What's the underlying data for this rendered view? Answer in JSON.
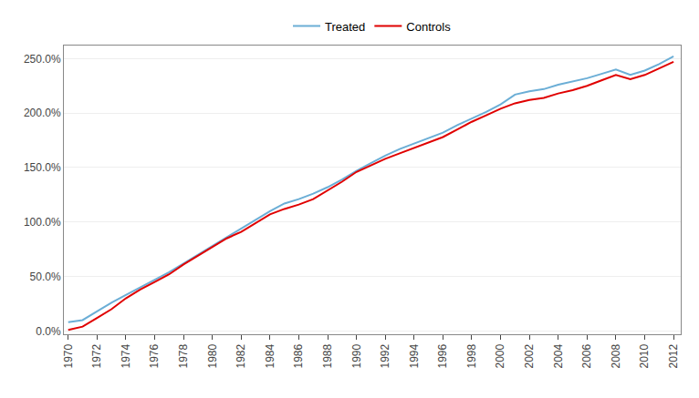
{
  "chart_data": {
    "type": "line",
    "x": [
      1970,
      1971,
      1972,
      1973,
      1974,
      1975,
      1976,
      1977,
      1978,
      1979,
      1980,
      1981,
      1982,
      1983,
      1984,
      1985,
      1986,
      1987,
      1988,
      1989,
      1990,
      1991,
      1992,
      1993,
      1994,
      1995,
      1996,
      1997,
      1998,
      1999,
      2000,
      2001,
      2002,
      2003,
      2004,
      2005,
      2006,
      2007,
      2008,
      2009,
      2010,
      2011,
      2012
    ],
    "series": [
      {
        "name": "Treated",
        "color": "#6BAED6",
        "values": [
          0.08,
          0.1,
          0.18,
          0.26,
          0.33,
          0.4,
          0.47,
          0.54,
          0.62,
          0.7,
          0.78,
          0.86,
          0.94,
          1.02,
          1.1,
          1.17,
          1.21,
          1.26,
          1.32,
          1.39,
          1.47,
          1.54,
          1.61,
          1.67,
          1.72,
          1.77,
          1.82,
          1.89,
          1.95,
          2.01,
          2.08,
          2.17,
          2.2,
          2.22,
          2.26,
          2.29,
          2.32,
          2.36,
          2.4,
          2.35,
          2.39,
          2.45,
          2.52
        ]
      },
      {
        "name": "Controls",
        "color": "#E00000",
        "values": [
          0.01,
          0.04,
          0.12,
          0.2,
          0.3,
          0.38,
          0.45,
          0.52,
          0.61,
          0.69,
          0.77,
          0.85,
          0.91,
          0.99,
          1.07,
          1.12,
          1.16,
          1.21,
          1.29,
          1.37,
          1.46,
          1.52,
          1.58,
          1.63,
          1.68,
          1.73,
          1.78,
          1.85,
          1.92,
          1.98,
          2.04,
          2.09,
          2.12,
          2.14,
          2.18,
          2.21,
          2.25,
          2.3,
          2.35,
          2.31,
          2.35,
          2.41,
          2.47
        ]
      }
    ],
    "xlim": [
      1969.7,
      2012.5
    ],
    "xticks": [
      1970,
      1972,
      1974,
      1976,
      1978,
      1980,
      1982,
      1984,
      1986,
      1988,
      1990,
      1992,
      1994,
      1996,
      1998,
      2000,
      2002,
      2004,
      2006,
      2008,
      2010,
      2012
    ],
    "ylim": [
      -0.03,
      2.62
    ],
    "yticks": [
      {
        "value": 0.0,
        "label": "0.0%"
      },
      {
        "value": 0.5,
        "label": "50.0%"
      },
      {
        "value": 1.0,
        "label": "100.0%"
      },
      {
        "value": 1.5,
        "label": "150.0%"
      },
      {
        "value": 2.0,
        "label": "200.0%"
      },
      {
        "value": 2.5,
        "label": "250.0%"
      }
    ],
    "grid": "y",
    "legend": "top"
  }
}
